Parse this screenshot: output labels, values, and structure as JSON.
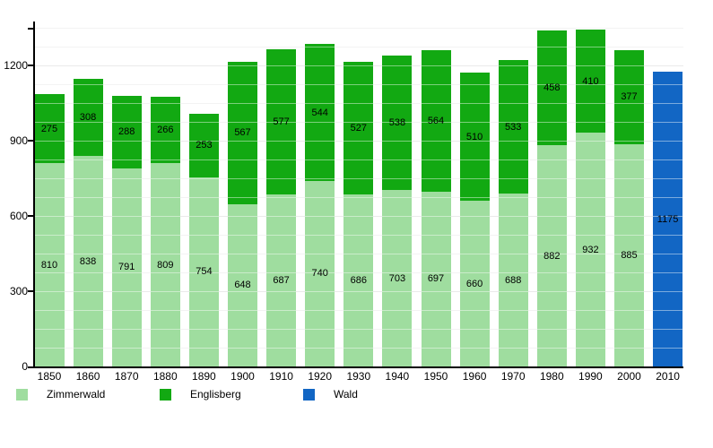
{
  "chart_data": {
    "type": "bar",
    "stacked": true,
    "title": "",
    "xlabel": "",
    "ylabel": "",
    "categories": [
      "1850",
      "1860",
      "1870",
      "1880",
      "1890",
      "1900",
      "1910",
      "1920",
      "1930",
      "1940",
      "1950",
      "1960",
      "1970",
      "1980",
      "1990",
      "2000",
      "2010"
    ],
    "series": [
      {
        "name": "Zimmerwald",
        "color": "#9fdd9f",
        "values": [
          810,
          838,
          791,
          809,
          754,
          648,
          687,
          740,
          686,
          703,
          697,
          660,
          688,
          882,
          932,
          885,
          null
        ]
      },
      {
        "name": "Englisberg",
        "color": "#12a912",
        "values": [
          275,
          308,
          288,
          266,
          253,
          567,
          577,
          544,
          527,
          538,
          564,
          510,
          533,
          458,
          410,
          377,
          null
        ]
      },
      {
        "name": "Wald",
        "color": "#1266c4",
        "values": [
          null,
          null,
          null,
          null,
          null,
          null,
          null,
          null,
          null,
          null,
          null,
          null,
          null,
          null,
          null,
          null,
          1175
        ]
      }
    ],
    "ylim": [
      0,
      1380
    ],
    "yticks": [
      "0",
      "300",
      "600",
      "900",
      "1200"
    ],
    "ytick_values": [
      0,
      300,
      600,
      900,
      1200
    ],
    "minor_grid_step": 75,
    "minor_grid_max": 1350,
    "grid": true,
    "legend_position": "bottom"
  },
  "legend": {
    "items": [
      {
        "label": "Zimmerwald",
        "color": "#9fdd9f"
      },
      {
        "label": "Englisberg",
        "color": "#12a912"
      },
      {
        "label": "Wald",
        "color": "#1266c4"
      }
    ]
  }
}
